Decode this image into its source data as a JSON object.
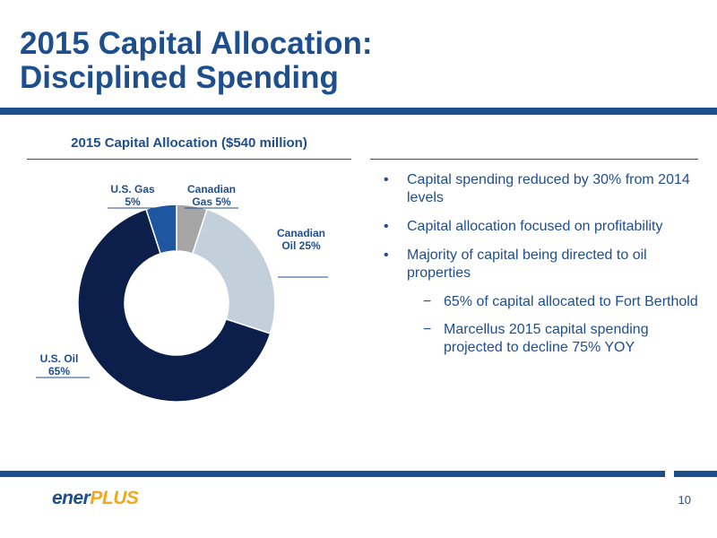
{
  "slide": {
    "title_line1": "2015 Capital Allocation:",
    "title_line2": "Disciplined Spending",
    "page_number": "10",
    "logo": {
      "part1": "ener",
      "part2": "PLUS"
    },
    "colors": {
      "accent": "#1f4e8c",
      "logo_orange": "#f0a81c"
    }
  },
  "bullets": [
    {
      "level": 1,
      "text": "Capital spending reduced by 30% from 2014 levels"
    },
    {
      "level": 1,
      "text": "Capital allocation focused on profitability"
    },
    {
      "level": 1,
      "text": "Majority of capital being directed to oil properties"
    },
    {
      "level": 2,
      "text": "65% of capital allocated to Fort Berthold"
    },
    {
      "level": 2,
      "text": "Marcellus 2015 capital spending projected to decline 75% YOY"
    }
  ],
  "chart_data": {
    "type": "pie",
    "title": "2015 Capital Allocation ($540 million)",
    "slices": [
      {
        "label_lines": [
          "Canadian",
          "Gas 5%"
        ],
        "value": 5,
        "color": "#a6a6a6"
      },
      {
        "label_lines": [
          "Canadian",
          "Oil 25%"
        ],
        "value": 25,
        "color": "#c4cfdc"
      },
      {
        "label_lines": [
          "U.S. Oil",
          "65%"
        ],
        "value": 65,
        "color": "#0c1f4a"
      },
      {
        "label_lines": [
          "U.S. Gas",
          "5%"
        ],
        "value": 5,
        "color": "#1e56a0"
      }
    ]
  }
}
